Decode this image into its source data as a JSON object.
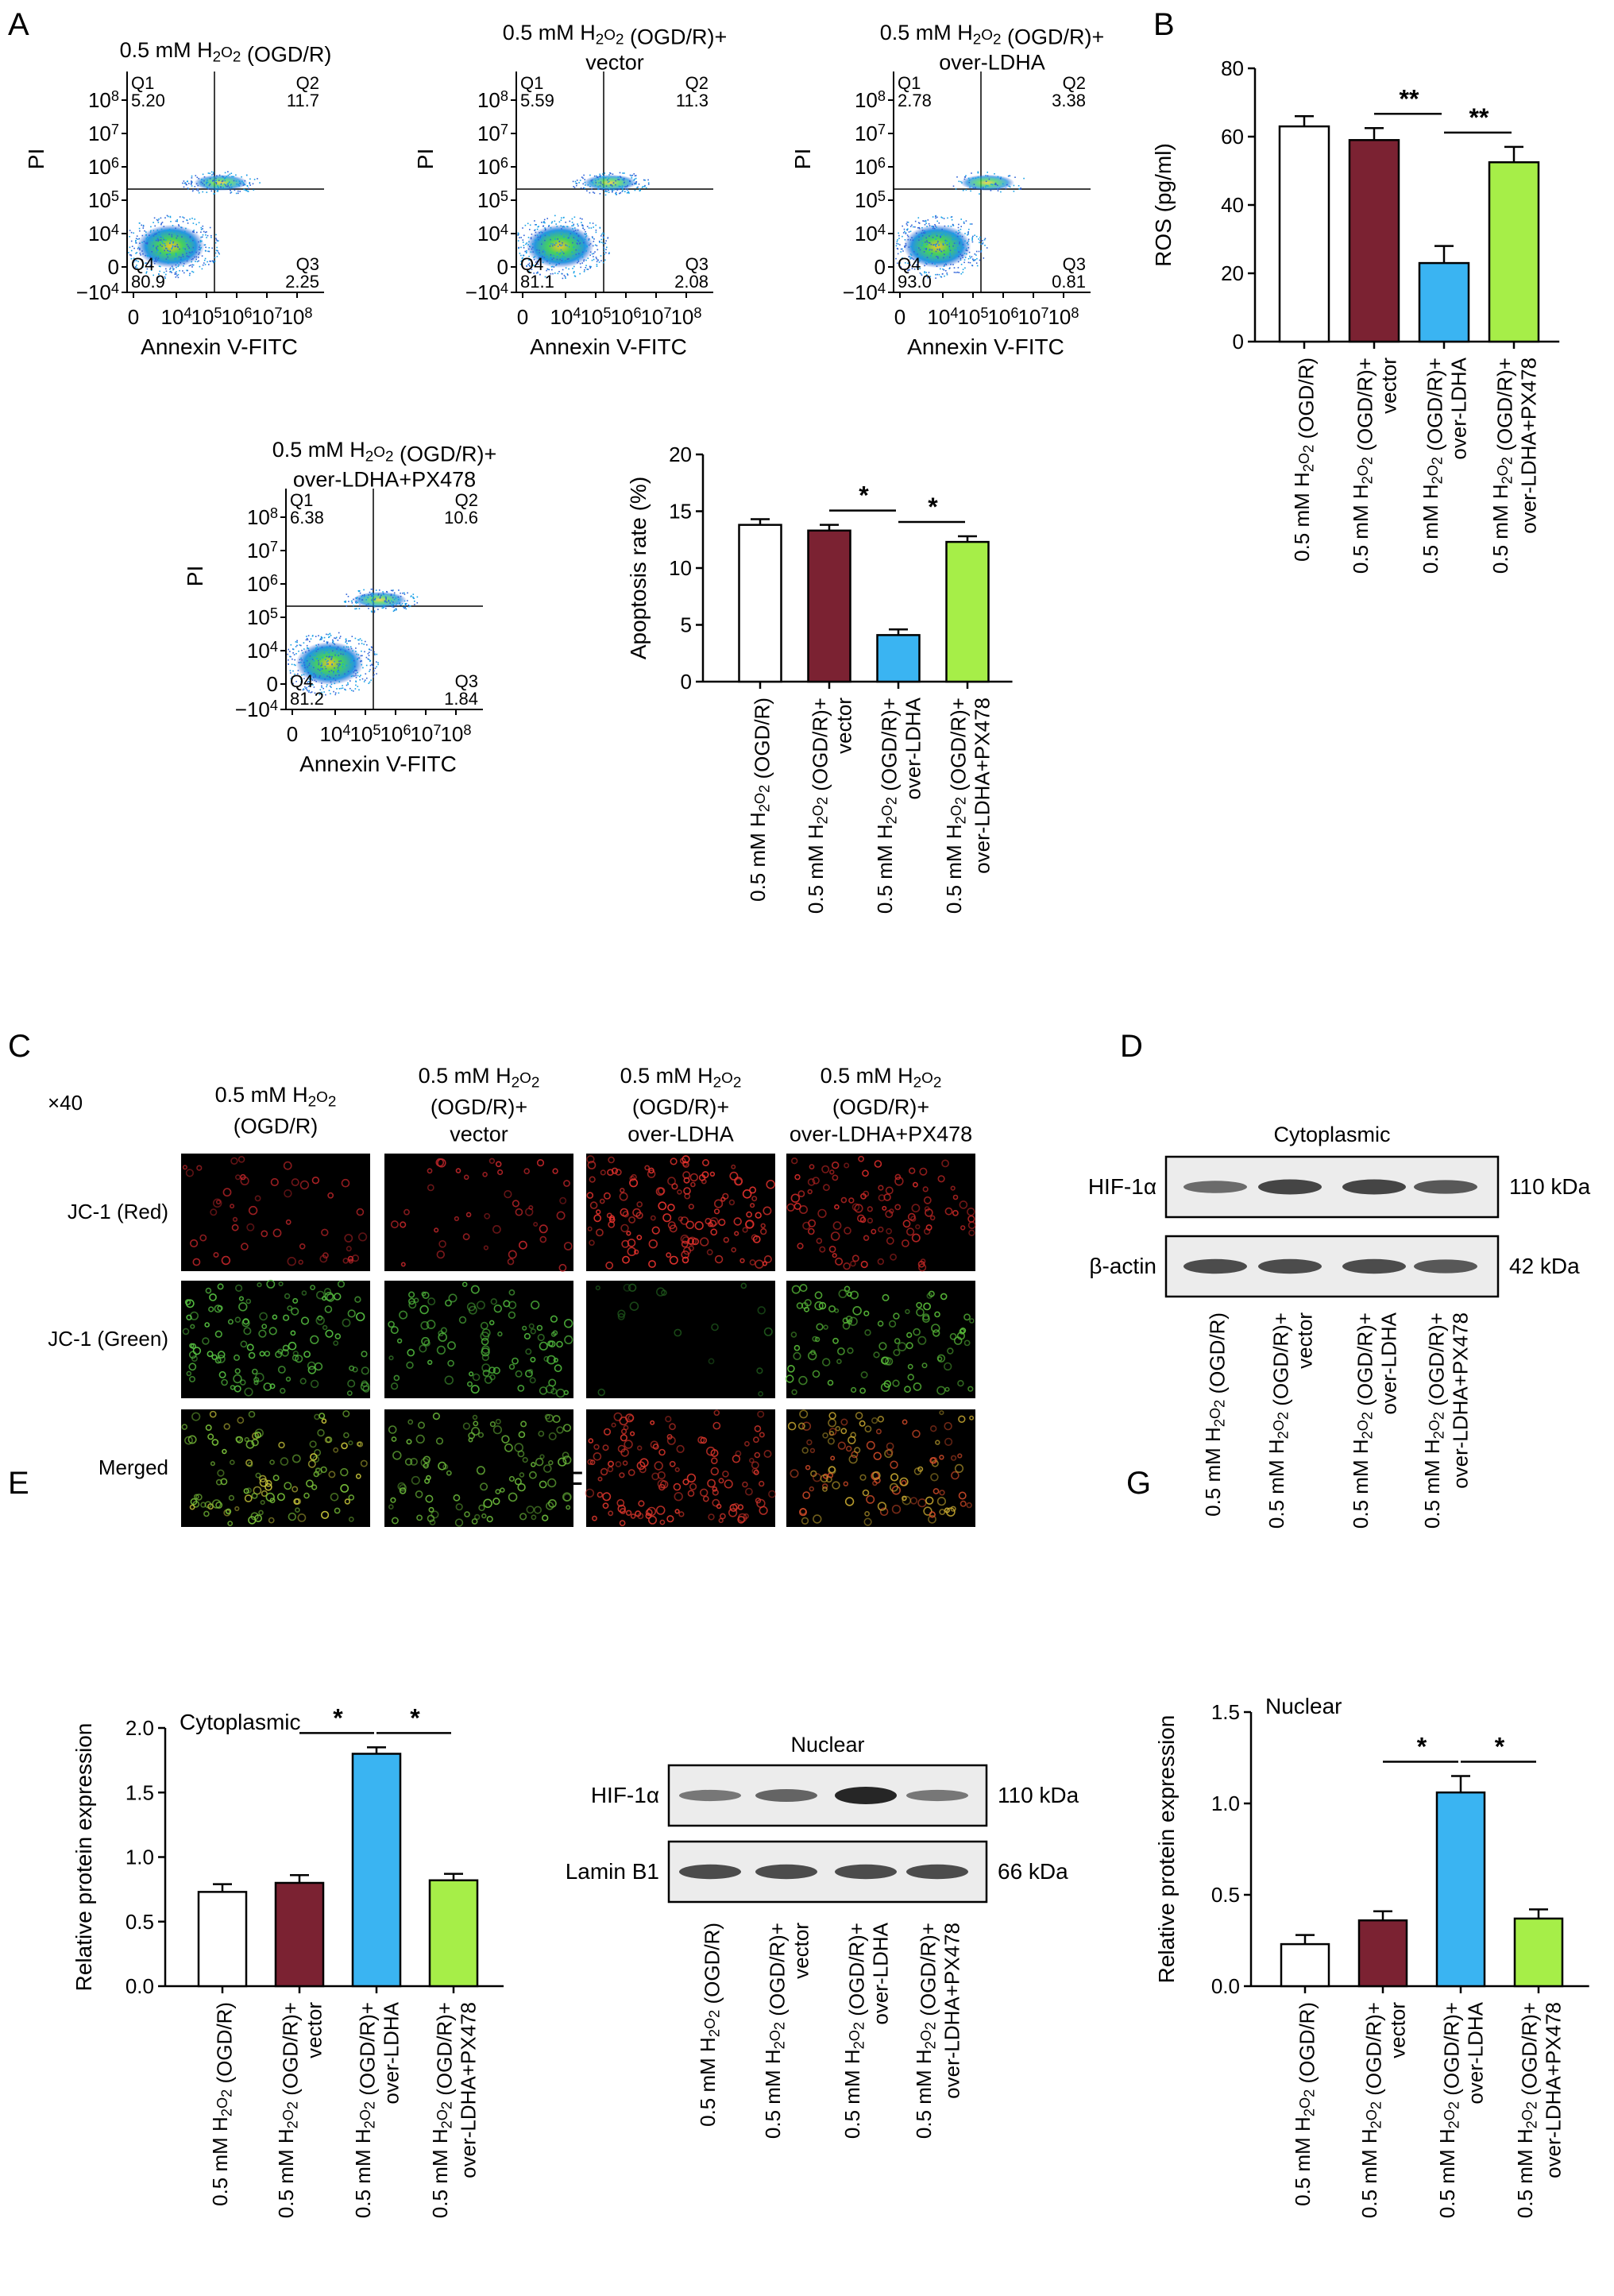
{
  "panels": {
    "A": "A",
    "B": "B",
    "C": "C",
    "D": "D",
    "E": "E",
    "F": "F",
    "G": "G"
  },
  "groups": [
    "0.5 mM H2O2 (OGD/R)",
    "0.5 mM H2O2 (OGD/R)+ vector",
    "0.5 mM H2O2 (OGD/R)+ over-LDHA",
    "0.5 mM H2O2 (OGD/R)+ over-LDHA+PX478"
  ],
  "flow": {
    "xlabel": "Annexin V-FITC",
    "ylabel": "PI",
    "y_ticks": [
      "10^8",
      "10^7",
      "10^6",
      "10^5",
      "10^4",
      "0",
      "−10^4"
    ],
    "x_ticks": [
      "0",
      "10^4",
      "10^5",
      "10^6",
      "10^7",
      "10^8"
    ],
    "plots": [
      {
        "title": "0.5 mM H2O2 (OGD/R)",
        "q1": "5.20",
        "q2": "11.7",
        "q3": "2.25",
        "q4": "80.9"
      },
      {
        "title": "0.5 mM H2O2 (OGD/R)+ vector",
        "q1": "5.59",
        "q2": "11.3",
        "q3": "2.08",
        "q4": "81.1"
      },
      {
        "title": "0.5 mM H2O2 (OGD/R)+ over-LDHA",
        "q1": "2.78",
        "q2": "3.38",
        "q3": "0.81",
        "q4": "93.0"
      },
      {
        "title": "0.5 mM H2O2 (OGD/R)+ over-LDHA+PX478",
        "q1": "6.38",
        "q2": "10.6",
        "q3": "1.84",
        "q4": "81.2"
      }
    ]
  },
  "microscopy": {
    "magnification": "×40",
    "rows": [
      "JC-1 (Red)",
      "JC-1 (Green)",
      "Merged"
    ]
  },
  "western_D": {
    "title": "Cytoplasmic",
    "bands": [
      {
        "name": "HIF-1α",
        "size": "110 kDa"
      },
      {
        "name": "β-actin",
        "size": "42 kDa"
      }
    ]
  },
  "western_F": {
    "title": "Nuclear",
    "bands": [
      {
        "name": "HIF-1α",
        "size": "110 kDa"
      },
      {
        "name": "Lamin B1",
        "size": "66 kDa"
      }
    ]
  },
  "colors": {
    "bar1": "#ffffff",
    "bar2": "#7b2232",
    "bar3": "#3ab4f2",
    "bar4": "#a6ee48"
  },
  "chart_data": [
    {
      "id": "apoptosis",
      "type": "bar",
      "categories": [
        "0.5 mM H2O2 (OGD/R)",
        "0.5 mM H2O2 (OGD/R)+ vector",
        "0.5 mM H2O2 (OGD/R)+ over-LDHA",
        "0.5 mM H2O2 (OGD/R)+ over-LDHA+PX478"
      ],
      "values": [
        13.8,
        13.3,
        4.1,
        12.3
      ],
      "errors": [
        0.5,
        0.5,
        0.5,
        0.5
      ],
      "ylabel": "Apoptosis rate (%)",
      "ylim": [
        0,
        20
      ],
      "yticks": [
        0,
        5,
        10,
        15,
        20
      ],
      "tick_labels": [
        "0",
        "5",
        "10",
        "15",
        "20"
      ],
      "significance": [
        {
          "from": 1,
          "to": 2,
          "label": "*"
        },
        {
          "from": 2,
          "to": 3,
          "label": "*"
        }
      ]
    },
    {
      "id": "ros",
      "type": "bar",
      "categories": [
        "0.5 mM H2O2 (OGD/R)",
        "0.5 mM H2O2 (OGD/R)+ vector",
        "0.5 mM H2O2 (OGD/R)+ over-LDHA",
        "0.5 mM H2O2 (OGD/R)+ over-LDHA+PX478"
      ],
      "values": [
        63,
        59,
        23,
        52.5
      ],
      "errors": [
        3,
        3.5,
        5,
        4.5
      ],
      "ylabel": "ROS (pg/ml)",
      "ylim": [
        0,
        80
      ],
      "yticks": [
        0,
        20,
        40,
        60,
        80
      ],
      "tick_labels": [
        "0",
        "20",
        "40",
        "60",
        "80"
      ],
      "significance": [
        {
          "from": 1,
          "to": 2,
          "label": "**"
        },
        {
          "from": 2,
          "to": 3,
          "label": "**"
        }
      ]
    },
    {
      "id": "cyto",
      "type": "bar",
      "title": "Cytoplasmic",
      "categories": [
        "0.5 mM H2O2 (OGD/R)",
        "0.5 mM H2O2 (OGD/R)+ vector",
        "0.5 mM H2O2 (OGD/R)+ over-LDHA",
        "0.5 mM H2O2 (OGD/R)+ over-LDHA+PX478"
      ],
      "values": [
        0.73,
        0.8,
        1.8,
        0.82
      ],
      "errors": [
        0.06,
        0.06,
        0.05,
        0.05
      ],
      "ylabel": "Relative protein expression",
      "ylim": [
        0,
        2.0
      ],
      "yticks": [
        0,
        0.5,
        1.0,
        1.5,
        2.0
      ],
      "tick_labels": [
        "0.0",
        "0.5",
        "1.0",
        "1.5",
        "2.0"
      ],
      "significance": [
        {
          "from": 1,
          "to": 2,
          "label": "*"
        },
        {
          "from": 2,
          "to": 3,
          "label": "*"
        }
      ]
    },
    {
      "id": "nuc",
      "type": "bar",
      "title": "Nuclear",
      "categories": [
        "0.5 mM H2O2 (OGD/R)",
        "0.5 mM H2O2 (OGD/R)+ vector",
        "0.5 mM H2O2 (OGD/R)+ over-LDHA",
        "0.5 mM H2O2 (OGD/R)+ over-LDHA+PX478"
      ],
      "values": [
        0.23,
        0.36,
        1.06,
        0.37
      ],
      "errors": [
        0.05,
        0.05,
        0.09,
        0.05
      ],
      "ylabel": "Relative protein expression",
      "ylim": [
        0,
        1.5
      ],
      "yticks": [
        0,
        0.5,
        1.0,
        1.5
      ],
      "tick_labels": [
        "0.0",
        "0.5",
        "1.0",
        "1.5"
      ],
      "significance": [
        {
          "from": 1,
          "to": 2,
          "label": "*"
        },
        {
          "from": 2,
          "to": 3,
          "label": "*"
        }
      ]
    }
  ]
}
